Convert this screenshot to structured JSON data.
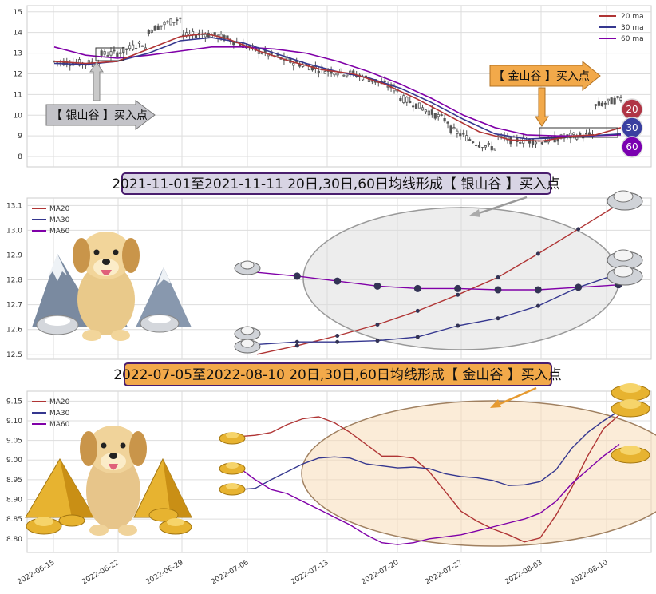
{
  "chart_data": [
    {
      "type": "candlestick_with_ma",
      "y_ticks": [
        "8",
        "9",
        "10",
        "11",
        "12",
        "13",
        "14",
        "15"
      ],
      "ylim": [
        7.5,
        15.3
      ],
      "legend": [
        "20 ma",
        "30 ma",
        "60 ma"
      ],
      "colors": {
        "ma20": "#b03535",
        "ma30": "#35378f",
        "ma60": "#8000a8",
        "candle": "#555555"
      },
      "x_dates_index": 180,
      "ma20": [
        [
          0,
          12.6
        ],
        [
          10,
          12.5
        ],
        [
          20,
          12.6
        ],
        [
          30,
          13.2
        ],
        [
          40,
          13.8
        ],
        [
          48,
          13.95
        ],
        [
          55,
          13.7
        ],
        [
          65,
          13.1
        ],
        [
          75,
          12.6
        ],
        [
          85,
          12.2
        ],
        [
          95,
          12.0
        ],
        [
          105,
          11.5
        ],
        [
          115,
          10.8
        ],
        [
          125,
          10.0
        ],
        [
          135,
          9.2
        ],
        [
          145,
          8.8
        ],
        [
          155,
          8.75
        ],
        [
          165,
          9.0
        ],
        [
          172,
          9.05
        ],
        [
          180,
          9.4
        ]
      ],
      "ma30": [
        [
          0,
          12.5
        ],
        [
          10,
          12.45
        ],
        [
          20,
          12.6
        ],
        [
          30,
          13.0
        ],
        [
          40,
          13.6
        ],
        [
          50,
          13.75
        ],
        [
          60,
          13.5
        ],
        [
          70,
          13.0
        ],
        [
          80,
          12.5
        ],
        [
          90,
          12.1
        ],
        [
          100,
          11.8
        ],
        [
          110,
          11.3
        ],
        [
          120,
          10.6
        ],
        [
          130,
          9.8
        ],
        [
          140,
          9.1
        ],
        [
          150,
          8.85
        ],
        [
          160,
          8.9
        ],
        [
          170,
          9.0
        ],
        [
          180,
          9.1
        ]
      ],
      "ma60": [
        [
          0,
          13.3
        ],
        [
          10,
          12.9
        ],
        [
          20,
          12.75
        ],
        [
          30,
          12.9
        ],
        [
          40,
          13.1
        ],
        [
          50,
          13.3
        ],
        [
          60,
          13.3
        ],
        [
          70,
          13.2
        ],
        [
          80,
          13.0
        ],
        [
          90,
          12.6
        ],
        [
          100,
          12.1
        ],
        [
          110,
          11.5
        ],
        [
          120,
          10.8
        ],
        [
          130,
          10.0
        ],
        [
          140,
          9.4
        ],
        [
          150,
          9.05
        ],
        [
          160,
          9.0
        ],
        [
          170,
          9.0
        ],
        [
          180,
          9.05
        ]
      ],
      "badges": [
        "20",
        "30",
        "60"
      ],
      "annotations": {
        "silver_arrow": "【 银山谷 】买入点",
        "gold_arrow": "【 金山谷 】买入点"
      }
    },
    {
      "type": "line",
      "title": "2021-11-01至2021-11-11 20日,30日,60日均线形成【 银山谷 】买入点",
      "y_ticks": [
        "12.5",
        "12.6",
        "12.7",
        "12.8",
        "12.9",
        "13.0",
        "13.1"
      ],
      "ylim": [
        12.48,
        13.13
      ],
      "legend": [
        "MA20",
        "MA30",
        "MA60"
      ],
      "series": [
        {
          "name": "MA20",
          "color": "#b03535",
          "values": [
            12.5,
            12.535,
            12.575,
            12.62,
            12.675,
            12.74,
            12.81,
            12.905,
            13.005,
            13.105
          ]
        },
        {
          "name": "MA30",
          "color": "#35378f",
          "values": [
            12.54,
            12.55,
            12.55,
            12.555,
            12.57,
            12.615,
            12.645,
            12.695,
            12.77,
            12.825
          ]
        },
        {
          "name": "MA60",
          "color": "#8000a8",
          "values": [
            12.83,
            12.815,
            12.795,
            12.775,
            12.765,
            12.765,
            12.76,
            12.76,
            12.77,
            12.78
          ]
        }
      ]
    },
    {
      "type": "line",
      "title": "2022-07-05至2022-08-10 20日,30日,60日均线形成【 金山谷 】买入点",
      "y_ticks": [
        "8.80",
        "8.85",
        "8.90",
        "8.95",
        "9.00",
        "9.05",
        "9.10",
        "9.15"
      ],
      "ylim": [
        8.765,
        9.175
      ],
      "legend": [
        "MA20",
        "MA30",
        "MA60"
      ],
      "x_ticks": [
        "2022-06-15",
        "2022-06-22",
        "2022-06-29",
        "2022-07-06",
        "2022-07-13",
        "2022-07-20",
        "2022-07-27",
        "2022-08-03",
        "2022-08-10"
      ],
      "series": [
        {
          "name": "MA20",
          "color": "#b03535",
          "values": [
            9.06,
            9.063,
            9.07,
            9.09,
            9.105,
            9.11,
            9.095,
            9.07,
            9.04,
            9.01,
            9.01,
            9.005,
            8.97,
            8.92,
            8.87,
            8.845,
            8.825,
            8.81,
            8.792,
            8.802,
            8.86,
            8.93,
            9.01,
            9.08,
            9.115
          ]
        },
        {
          "name": "MA30",
          "color": "#35378f",
          "values": [
            8.925,
            8.928,
            8.95,
            8.97,
            8.99,
            9.005,
            9.008,
            9.005,
            8.99,
            8.985,
            8.98,
            8.982,
            8.978,
            8.965,
            8.958,
            8.955,
            8.948,
            8.935,
            8.937,
            8.945,
            8.975,
            9.03,
            9.07,
            9.1,
            9.125
          ]
        },
        {
          "name": "MA60",
          "color": "#8000a8",
          "values": [
            8.98,
            8.95,
            8.925,
            8.915,
            8.895,
            8.875,
            8.855,
            8.835,
            8.81,
            8.79,
            8.785,
            8.79,
            8.8,
            8.805,
            8.81,
            8.82,
            8.83,
            8.84,
            8.85,
            8.865,
            8.895,
            8.94,
            8.975,
            9.01,
            9.04
          ]
        }
      ]
    }
  ]
}
